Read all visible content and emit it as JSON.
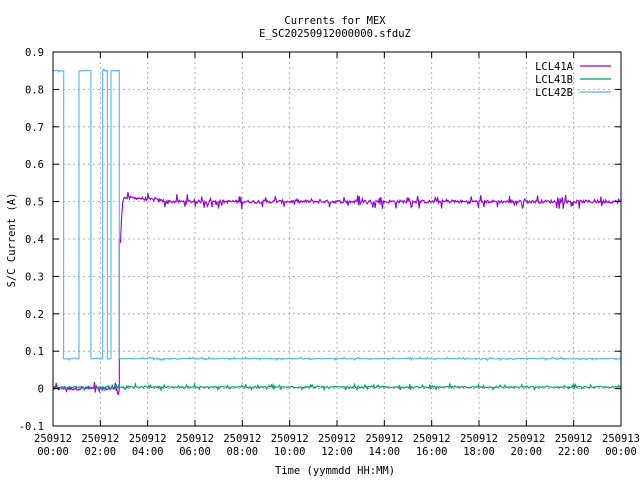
{
  "chart_data": {
    "type": "line",
    "title": "Currents for MEX",
    "subtitle": "E_SC20250912000000.sfduZ",
    "xlabel": "Time (yymmdd HH:MM)",
    "ylabel": "S/C Current (A)",
    "xlim": [
      0,
      24
    ],
    "ylim": [
      -0.1,
      0.9
    ],
    "grid": true,
    "legend_position": "top-right",
    "x_ticks": [
      {
        "x": 0,
        "date": "250912",
        "time": "00:00"
      },
      {
        "x": 2,
        "date": "250912",
        "time": "02:00"
      },
      {
        "x": 4,
        "date": "250912",
        "time": "04:00"
      },
      {
        "x": 6,
        "date": "250912",
        "time": "06:00"
      },
      {
        "x": 8,
        "date": "250912",
        "time": "08:00"
      },
      {
        "x": 10,
        "date": "250912",
        "time": "10:00"
      },
      {
        "x": 12,
        "date": "250912",
        "time": "12:00"
      },
      {
        "x": 14,
        "date": "250912",
        "time": "14:00"
      },
      {
        "x": 16,
        "date": "250912",
        "time": "16:00"
      },
      {
        "x": 18,
        "date": "250912",
        "time": "18:00"
      },
      {
        "x": 20,
        "date": "250912",
        "time": "20:00"
      },
      {
        "x": 22,
        "date": "250912",
        "time": "22:00"
      },
      {
        "x": 24,
        "date": "250913",
        "time": "00:00"
      }
    ],
    "y_ticks": [
      "-0.1",
      "0",
      "0.1",
      "0.2",
      "0.3",
      "0.4",
      "0.5",
      "0.6",
      "0.7",
      "0.8",
      "0.9"
    ],
    "series": [
      {
        "name": "LCL41A",
        "color": "#9400d3",
        "points": [
          [
            0,
            0.0
          ],
          [
            2.8,
            0.0
          ],
          [
            2.8,
            0.4
          ],
          [
            2.85,
            0.39
          ],
          [
            2.9,
            0.46
          ],
          [
            2.95,
            0.5
          ],
          [
            3.0,
            0.51
          ],
          [
            3.5,
            0.51
          ],
          [
            5,
            0.5
          ],
          [
            10,
            0.5
          ],
          [
            15,
            0.5
          ],
          [
            20,
            0.5
          ],
          [
            24,
            0.5
          ]
        ],
        "noise": 0.01
      },
      {
        "name": "LCL41B",
        "color": "#009e73",
        "points": [
          [
            0,
            0.004
          ],
          [
            24,
            0.004
          ]
        ],
        "noise": 0.004
      },
      {
        "name": "LCL42B",
        "color": "#56b4e9",
        "points": [
          [
            0,
            0.85
          ],
          [
            0.45,
            0.85
          ],
          [
            0.45,
            0.08
          ],
          [
            1.1,
            0.08
          ],
          [
            1.1,
            0.85
          ],
          [
            1.6,
            0.85
          ],
          [
            1.6,
            0.08
          ],
          [
            2.1,
            0.08
          ],
          [
            2.1,
            0.85
          ],
          [
            2.3,
            0.85
          ],
          [
            2.3,
            0.08
          ],
          [
            2.45,
            0.08
          ],
          [
            2.45,
            0.85
          ],
          [
            2.8,
            0.85
          ],
          [
            2.8,
            0.08
          ],
          [
            24,
            0.08
          ]
        ],
        "noise": 0.002
      }
    ]
  }
}
